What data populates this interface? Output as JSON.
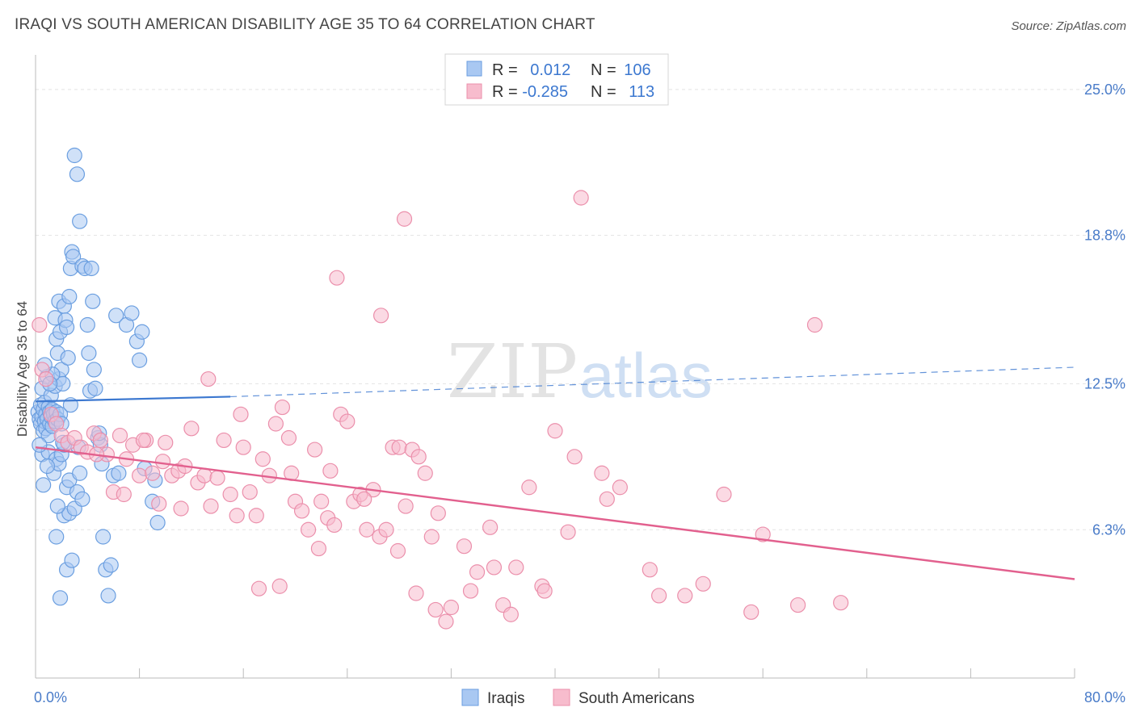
{
  "header": {
    "title": "IRAQI VS SOUTH AMERICAN DISABILITY AGE 35 TO 64 CORRELATION CHART",
    "source": "Source: ZipAtlas.com"
  },
  "watermark": {
    "zip": "ZIP",
    "atlas": "atlas"
  },
  "colors": {
    "iraqis_fill": "#a9c8f2",
    "iraqis_stroke": "#6a9ee0",
    "iraqis_line": "#3c78d0",
    "south_fill": "#f7bccd",
    "south_stroke": "#eb8fab",
    "south_line": "#e2608e",
    "tick_label": "#4a7cc9",
    "grid": "#e3e3e3"
  },
  "legend": {
    "rows": [
      {
        "r_label": "R = ",
        "r_value": "0.012",
        "n_label": "N = ",
        "n_value": "106"
      },
      {
        "r_label": "R = ",
        "r_value": "-0.285",
        "n_label": "N = ",
        "n_value": "113"
      }
    ]
  },
  "chart_data": {
    "type": "scatter",
    "title": "IRAQI VS SOUTH AMERICAN DISABILITY AGE 35 TO 64 CORRELATION CHART",
    "xlabel": "",
    "ylabel": "Disability Age 35 to 64",
    "xlim": [
      0,
      80
    ],
    "ylim": [
      0,
      26.4
    ],
    "x_tick_labels": [
      "0.0%",
      "80.0%"
    ],
    "y_ticks": [
      6.3,
      12.5,
      18.8,
      25.0
    ],
    "y_tick_labels": [
      "6.3%",
      "12.5%",
      "18.8%",
      "25.0%"
    ],
    "grid": "horizontal dashed",
    "legend_position": "bottom-center",
    "series": [
      {
        "name": "Iraqis",
        "r": 0.012,
        "n": 106,
        "trend": {
          "x0": 0,
          "y0": 11.75,
          "x1": 15,
          "y1": 11.95,
          "dashed_to_x": 80,
          "dashed_to_y": 13.2
        },
        "points": [
          [
            0.2,
            11.3
          ],
          [
            0.3,
            11.0
          ],
          [
            0.4,
            10.8
          ],
          [
            0.4,
            11.6
          ],
          [
            0.5,
            12.3
          ],
          [
            0.5,
            11.1
          ],
          [
            0.6,
            10.5
          ],
          [
            0.6,
            11.4
          ],
          [
            0.7,
            10.9
          ],
          [
            0.7,
            11.7
          ],
          [
            0.8,
            11.2
          ],
          [
            0.8,
            10.6
          ],
          [
            0.9,
            12.8
          ],
          [
            0.9,
            11.0
          ],
          [
            1.0,
            11.5
          ],
          [
            1.0,
            10.3
          ],
          [
            1.1,
            11.3
          ],
          [
            1.1,
            10.8
          ],
          [
            1.2,
            12.0
          ],
          [
            1.2,
            11.1
          ],
          [
            1.3,
            10.7
          ],
          [
            1.3,
            11.4
          ],
          [
            1.4,
            11.2
          ],
          [
            1.5,
            12.4
          ],
          [
            1.5,
            10.9
          ],
          [
            1.6,
            11.3
          ],
          [
            1.7,
            11.0
          ],
          [
            1.8,
            12.7
          ],
          [
            1.9,
            11.2
          ],
          [
            2.0,
            10.8
          ],
          [
            0.5,
            9.5
          ],
          [
            0.6,
            8.2
          ],
          [
            1.0,
            9.6
          ],
          [
            1.4,
            8.7
          ],
          [
            1.6,
            9.3
          ],
          [
            1.8,
            9.1
          ],
          [
            2.0,
            9.5
          ],
          [
            2.2,
            9.9
          ],
          [
            2.4,
            8.1
          ],
          [
            2.6,
            8.4
          ],
          [
            1.5,
            15.3
          ],
          [
            1.6,
            14.4
          ],
          [
            1.7,
            13.8
          ],
          [
            1.8,
            16.0
          ],
          [
            1.9,
            14.7
          ],
          [
            2.0,
            13.1
          ],
          [
            2.1,
            12.5
          ],
          [
            2.2,
            15.8
          ],
          [
            2.3,
            15.2
          ],
          [
            2.4,
            14.9
          ],
          [
            2.5,
            13.6
          ],
          [
            2.6,
            16.2
          ],
          [
            2.7,
            17.4
          ],
          [
            2.8,
            18.1
          ],
          [
            2.9,
            17.9
          ],
          [
            3.0,
            22.2
          ],
          [
            3.2,
            21.4
          ],
          [
            3.4,
            19.4
          ],
          [
            3.6,
            17.5
          ],
          [
            3.8,
            17.4
          ],
          [
            1.6,
            6.0
          ],
          [
            1.9,
            3.4
          ],
          [
            2.2,
            6.9
          ],
          [
            2.4,
            4.6
          ],
          [
            2.6,
            7.0
          ],
          [
            2.8,
            5.0
          ],
          [
            3.0,
            7.2
          ],
          [
            3.2,
            7.9
          ],
          [
            3.4,
            8.7
          ],
          [
            3.6,
            7.6
          ],
          [
            4.0,
            15.0
          ],
          [
            4.1,
            13.8
          ],
          [
            4.2,
            12.2
          ],
          [
            4.3,
            17.4
          ],
          [
            4.4,
            16.0
          ],
          [
            4.5,
            13.1
          ],
          [
            4.6,
            12.3
          ],
          [
            4.8,
            10.2
          ],
          [
            5.0,
            9.9
          ],
          [
            5.1,
            9.1
          ],
          [
            5.2,
            6.0
          ],
          [
            5.4,
            4.6
          ],
          [
            5.6,
            3.5
          ],
          [
            5.8,
            4.8
          ],
          [
            6.0,
            8.6
          ],
          [
            6.2,
            15.4
          ],
          [
            6.4,
            8.7
          ],
          [
            7.0,
            15.0
          ],
          [
            7.4,
            15.5
          ],
          [
            7.8,
            14.3
          ],
          [
            8.0,
            13.5
          ],
          [
            8.2,
            14.7
          ],
          [
            8.4,
            8.9
          ],
          [
            9.0,
            7.5
          ],
          [
            9.2,
            8.4
          ],
          [
            9.4,
            6.6
          ],
          [
            1.3,
            12.9
          ],
          [
            0.9,
            9.0
          ],
          [
            2.1,
            10.0
          ],
          [
            1.7,
            7.3
          ],
          [
            3.3,
            9.8
          ],
          [
            1.1,
            12.5
          ],
          [
            2.7,
            11.6
          ],
          [
            0.7,
            13.3
          ],
          [
            4.9,
            10.4
          ],
          [
            0.3,
            9.9
          ]
        ]
      },
      {
        "name": "South Americans",
        "r": -0.285,
        "n": 113,
        "trend": {
          "x0": 0,
          "y0": 9.8,
          "x1": 80,
          "y1": 4.2
        },
        "points": [
          [
            0.3,
            15.0
          ],
          [
            0.5,
            13.1
          ],
          [
            0.8,
            12.7
          ],
          [
            1.2,
            11.2
          ],
          [
            1.6,
            10.8
          ],
          [
            2.0,
            10.3
          ],
          [
            2.5,
            10.0
          ],
          [
            3.0,
            10.2
          ],
          [
            3.5,
            9.8
          ],
          [
            4.0,
            9.6
          ],
          [
            4.5,
            10.4
          ],
          [
            5.0,
            10.1
          ],
          [
            5.5,
            9.5
          ],
          [
            6.0,
            7.9
          ],
          [
            6.5,
            10.3
          ],
          [
            7.0,
            9.3
          ],
          [
            7.5,
            9.9
          ],
          [
            8.0,
            8.6
          ],
          [
            8.5,
            10.1
          ],
          [
            9.0,
            8.7
          ],
          [
            9.5,
            7.4
          ],
          [
            10.0,
            10.0
          ],
          [
            10.5,
            8.6
          ],
          [
            11.0,
            8.8
          ],
          [
            11.5,
            9.0
          ],
          [
            12.0,
            10.6
          ],
          [
            12.5,
            8.3
          ],
          [
            13.0,
            8.6
          ],
          [
            13.5,
            7.3
          ],
          [
            14.0,
            8.5
          ],
          [
            14.5,
            10.1
          ],
          [
            15.0,
            7.8
          ],
          [
            15.5,
            6.9
          ],
          [
            16.0,
            9.8
          ],
          [
            16.5,
            7.9
          ],
          [
            17.0,
            6.9
          ],
          [
            17.5,
            9.3
          ],
          [
            18.0,
            8.6
          ],
          [
            18.5,
            10.8
          ],
          [
            19.0,
            11.5
          ],
          [
            19.5,
            10.2
          ],
          [
            20.0,
            7.5
          ],
          [
            20.5,
            7.1
          ],
          [
            21.0,
            6.3
          ],
          [
            21.5,
            9.7
          ],
          [
            22.0,
            7.5
          ],
          [
            22.5,
            6.8
          ],
          [
            23.0,
            6.5
          ],
          [
            23.5,
            11.2
          ],
          [
            24.0,
            10.9
          ],
          [
            24.5,
            7.5
          ],
          [
            25.0,
            7.8
          ],
          [
            25.5,
            6.3
          ],
          [
            26.0,
            8.0
          ],
          [
            26.5,
            6.0
          ],
          [
            27.0,
            6.3
          ],
          [
            27.5,
            9.8
          ],
          [
            28.0,
            9.8
          ],
          [
            28.5,
            7.3
          ],
          [
            29.0,
            9.7
          ],
          [
            29.5,
            9.4
          ],
          [
            30.0,
            8.7
          ],
          [
            30.5,
            6.0
          ],
          [
            31.0,
            7.0
          ],
          [
            32.0,
            3.0
          ],
          [
            33.0,
            5.6
          ],
          [
            34.0,
            4.5
          ],
          [
            35.0,
            6.4
          ],
          [
            36.0,
            3.1
          ],
          [
            37.0,
            4.7
          ],
          [
            38.0,
            8.1
          ],
          [
            39.0,
            3.9
          ],
          [
            40.0,
            10.5
          ],
          [
            41.0,
            6.2
          ],
          [
            42.0,
            20.4
          ],
          [
            44.0,
            7.6
          ],
          [
            45.0,
            8.1
          ],
          [
            48.0,
            3.5
          ],
          [
            50.0,
            3.5
          ],
          [
            53.0,
            7.8
          ],
          [
            56.0,
            6.1
          ],
          [
            60.0,
            15.0
          ],
          [
            62.0,
            3.2
          ],
          [
            13.3,
            12.7
          ],
          [
            23.2,
            17.0
          ],
          [
            26.6,
            15.4
          ],
          [
            28.4,
            19.5
          ],
          [
            18.8,
            3.9
          ],
          [
            17.2,
            3.8
          ],
          [
            21.8,
            5.5
          ],
          [
            11.2,
            7.2
          ],
          [
            9.8,
            9.2
          ],
          [
            6.8,
            7.8
          ],
          [
            4.7,
            9.5
          ],
          [
            8.3,
            10.1
          ],
          [
            15.8,
            11.2
          ],
          [
            19.7,
            8.7
          ],
          [
            22.7,
            8.8
          ],
          [
            25.3,
            7.6
          ],
          [
            27.9,
            5.4
          ],
          [
            29.3,
            3.6
          ],
          [
            30.8,
            2.9
          ],
          [
            31.6,
            2.4
          ],
          [
            33.5,
            3.7
          ],
          [
            35.3,
            4.7
          ],
          [
            36.6,
            2.7
          ],
          [
            39.2,
            3.7
          ],
          [
            41.5,
            9.4
          ],
          [
            43.6,
            8.7
          ],
          [
            47.3,
            4.6
          ],
          [
            51.4,
            4.0
          ],
          [
            55.1,
            2.8
          ],
          [
            58.7,
            3.1
          ]
        ]
      }
    ]
  },
  "bottom_legend": {
    "items": [
      "Iraqis",
      "South Americans"
    ]
  }
}
